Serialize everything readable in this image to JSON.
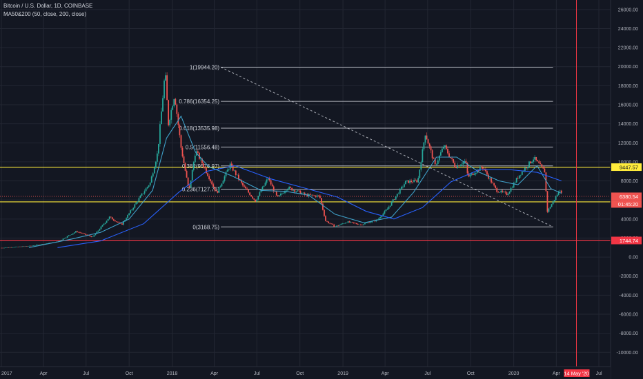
{
  "header": {
    "title": "Bitcoin / U.S. Dollar, 1D, COINBASE",
    "indicator": "MA50&200 (50, close, 200, close)"
  },
  "colors": {
    "background": "#131722",
    "grid": "#232733",
    "up_candle": "#26a69a",
    "down_candle": "#ef5350",
    "ma50": "#3fa0c8",
    "ma200": "#2962ff",
    "yellow_line": "#ffeb3b",
    "red_line": "#f23645",
    "fib_line": "#d1d4dc"
  },
  "chart_data": {
    "type": "candlestick",
    "title": "Bitcoin / U.S. Dollar, 1D, COINBASE",
    "x_ticks": [
      "2017",
      "Apr",
      "Jul",
      "Oct",
      "2018",
      "Apr",
      "Jul",
      "Oct",
      "2019",
      "Apr",
      "Jul",
      "Oct",
      "2020",
      "Apr",
      "Jul"
    ],
    "x_tick_dates": [
      "2017-01-01",
      "2017-04-01",
      "2017-07-01",
      "2017-10-01",
      "2018-01-01",
      "2018-04-01",
      "2018-07-01",
      "2018-10-01",
      "2019-01-01",
      "2019-04-01",
      "2019-07-01",
      "2019-10-01",
      "2020-01-01",
      "2020-04-01",
      "2020-07-01"
    ],
    "y_ticks": [
      26000,
      24000,
      22000,
      20000,
      18000,
      16000,
      14000,
      12000,
      10000,
      8000,
      6000,
      4000,
      2000,
      0,
      -2000,
      -4000,
      -6000,
      -8000,
      -10000
    ],
    "y_tick_labels": [
      "26000.00",
      "24000.00",
      "22000.00",
      "20000.00",
      "18000.00",
      "16000.00",
      "14000.00",
      "12000.00",
      "10000.00",
      "8000.00",
      "6000.00",
      "4000.00",
      "2000.00",
      "0.00",
      "-2000.00",
      "-4000.00",
      "-6000.00",
      "-8000.00",
      "-10000.00"
    ],
    "ylim": [
      -11500,
      27000
    ],
    "price_path": [
      [
        "2017-01-01",
        970
      ],
      [
        "2017-03-01",
        1150
      ],
      [
        "2017-05-01",
        1600
      ],
      [
        "2017-06-10",
        2700
      ],
      [
        "2017-07-15",
        2100
      ],
      [
        "2017-08-20",
        4200
      ],
      [
        "2017-09-15",
        3400
      ],
      [
        "2017-10-20",
        6000
      ],
      [
        "2017-11-15",
        7800
      ],
      [
        "2017-12-01",
        11000
      ],
      [
        "2017-12-17",
        19500
      ],
      [
        "2017-12-24",
        14000
      ],
      [
        "2018-01-06",
        17100
      ],
      [
        "2018-01-20",
        11500
      ],
      [
        "2018-02-06",
        6900
      ],
      [
        "2018-02-20",
        11200
      ],
      [
        "2018-03-10",
        9500
      ],
      [
        "2018-04-06",
        6700
      ],
      [
        "2018-05-05",
        9700
      ],
      [
        "2018-06-01",
        7500
      ],
      [
        "2018-06-28",
        5900
      ],
      [
        "2018-07-25",
        8300
      ],
      [
        "2018-08-14",
        6200
      ],
      [
        "2018-09-05",
        7300
      ],
      [
        "2018-10-15",
        6500
      ],
      [
        "2018-11-12",
        6400
      ],
      [
        "2018-11-25",
        3800
      ],
      [
        "2018-12-15",
        3200
      ],
      [
        "2019-01-10",
        3700
      ],
      [
        "2019-02-08",
        3400
      ],
      [
        "2019-03-15",
        3900
      ],
      [
        "2019-04-05",
        5000
      ],
      [
        "2019-05-15",
        7900
      ],
      [
        "2019-06-10",
        8000
      ],
      [
        "2019-06-26",
        13000
      ],
      [
        "2019-07-17",
        9600
      ],
      [
        "2019-08-05",
        11700
      ],
      [
        "2019-08-29",
        9500
      ],
      [
        "2019-09-20",
        10100
      ],
      [
        "2019-09-25",
        8400
      ],
      [
        "2019-10-26",
        9500
      ],
      [
        "2019-11-25",
        7000
      ],
      [
        "2019-12-18",
        6600
      ],
      [
        "2020-01-14",
        8700
      ],
      [
        "2020-02-13",
        10400
      ],
      [
        "2020-03-07",
        9000
      ],
      [
        "2020-03-13",
        4800
      ],
      [
        "2020-04-01",
        6400
      ],
      [
        "2020-04-09",
        7100
      ],
      [
        "2020-04-12",
        6900
      ]
    ],
    "ma50_path": [
      [
        "2017-03-01",
        1000
      ],
      [
        "2017-06-01",
        1900
      ],
      [
        "2017-08-01",
        2600
      ],
      [
        "2017-10-01",
        4000
      ],
      [
        "2017-11-20",
        7000
      ],
      [
        "2017-12-20",
        12500
      ],
      [
        "2018-01-20",
        14800
      ],
      [
        "2018-02-20",
        11000
      ],
      [
        "2018-03-20",
        9500
      ],
      [
        "2018-05-10",
        8500
      ],
      [
        "2018-07-10",
        7000
      ],
      [
        "2018-09-01",
        6900
      ],
      [
        "2018-10-20",
        6500
      ],
      [
        "2018-12-15",
        4500
      ],
      [
        "2019-02-15",
        3600
      ],
      [
        "2019-04-15",
        4200
      ],
      [
        "2019-06-01",
        6800
      ],
      [
        "2019-07-20",
        10500
      ],
      [
        "2019-09-01",
        10500
      ],
      [
        "2019-10-20",
        8900
      ],
      [
        "2019-12-01",
        8000
      ],
      [
        "2020-01-10",
        7600
      ],
      [
        "2020-02-20",
        9600
      ],
      [
        "2020-03-20",
        7200
      ],
      [
        "2020-04-12",
        6700
      ]
    ],
    "ma200_path": [
      [
        "2017-05-01",
        1000
      ],
      [
        "2017-08-01",
        1700
      ],
      [
        "2017-11-01",
        3500
      ],
      [
        "2018-01-15",
        6800
      ],
      [
        "2018-03-15",
        9000
      ],
      [
        "2018-05-15",
        9600
      ],
      [
        "2018-08-01",
        8200
      ],
      [
        "2018-10-15",
        7200
      ],
      [
        "2018-12-20",
        6300
      ],
      [
        "2019-02-20",
        4800
      ],
      [
        "2019-04-20",
        4000
      ],
      [
        "2019-06-20",
        5200
      ],
      [
        "2019-08-20",
        7900
      ],
      [
        "2019-10-20",
        9200
      ],
      [
        "2019-12-20",
        9200
      ],
      [
        "2020-02-20",
        8900
      ],
      [
        "2020-04-12",
        8000
      ]
    ],
    "fib_levels": [
      {
        "label": "1(19944.20)",
        "value": 19944.2
      },
      {
        "label": "0.786(16354.25)",
        "value": 16354.25
      },
      {
        "label": "0.618(13535.98)",
        "value": 13535.98
      },
      {
        "label": "0.5(11556.48)",
        "value": 11556.48
      },
      {
        "label": "0.382(9576.97)",
        "value": 9576.97
      },
      {
        "label": "0.236(7127.76)",
        "value": 7127.76
      },
      {
        "label": "0(3168.75)",
        "value": 3168.75
      }
    ],
    "fib_range": {
      "start": "2018-04-15",
      "end": "2020-03-25"
    },
    "fib_trend": {
      "from": {
        "date": "2018-04-15",
        "value": 19944.2
      },
      "to": {
        "date": "2020-03-25",
        "value": 3168.75
      }
    },
    "horizontal_lines": [
      {
        "value": 9447.57,
        "label": "9447.57",
        "color": "#ffeb3b"
      },
      {
        "value": 5800,
        "label": "",
        "color": "#ffeb3b"
      },
      {
        "value": 1744.74,
        "label": "1744.74",
        "color": "#f23645"
      }
    ],
    "current_price": {
      "value": 6380.54,
      "label": "6380.54",
      "countdown": "01:45:20"
    },
    "vertical_marker": {
      "date": "2020-05-14",
      "label": "14 May '20",
      "color": "#f23645"
    }
  }
}
